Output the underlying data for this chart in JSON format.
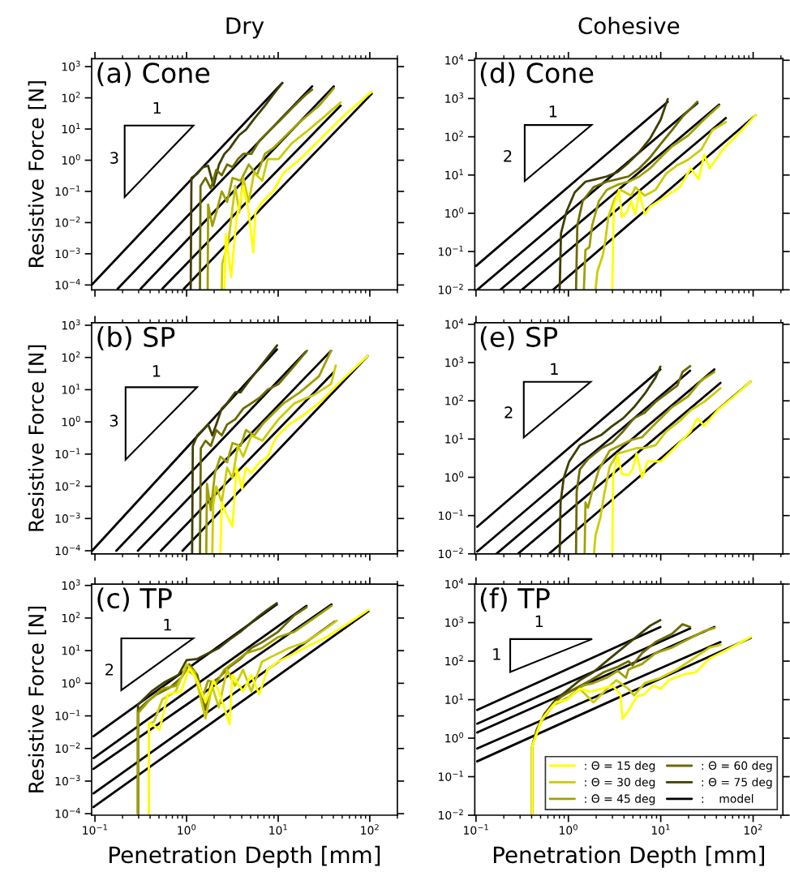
{
  "chart_data": [
    {
      "type": "line",
      "title": "Dry",
      "ylabel": "Resistive Force [N]",
      "annotations": [
        "(a) Cone",
        "1",
        "3"
      ],
      "log": "xy",
      "tick_labels": "y",
      "xlim": [
        0.092,
        200
      ],
      "ylim": [
        7e-05,
        1800
      ],
      "xticks": [
        {
          "value": 0.1,
          "label": null
        },
        {
          "value": 1,
          "label": null
        },
        {
          "value": 10,
          "label": null
        },
        {
          "value": 100,
          "label": null
        }
      ],
      "yticks": [
        {
          "value": 0.0001,
          "label": "10$^{−4}$"
        },
        {
          "value": 0.001,
          "label": "10$^{−3}$"
        },
        {
          "value": 0.01,
          "label": "10$^{−2}$"
        },
        {
          "value": 0.1,
          "label": "10$^{−1}$"
        },
        {
          "value": 1,
          "label": "10$^{0}$"
        },
        {
          "value": 10,
          "label": "10$^{1}$"
        },
        {
          "value": 100,
          "label": "10$^{2}$"
        },
        {
          "value": 1000,
          "label": "10$^{3}$"
        }
      ],
      "series": [
        {
          "color": "#ffff00",
          "x": [
            2.59,
            2.68,
            3.07,
            3.51,
            4.16,
            4.77,
            5.35,
            5.65,
            6.7,
            8.78,
            11.5,
            17.3,
            27.9,
            55,
            105
          ],
          "values": [
            7.6e-05,
            0.0043,
            0.00018,
            0.014,
            0.15,
            0.021,
            0.0011,
            0.021,
            0.046,
            0.1,
            0.4,
            1.08,
            4.3,
            31,
            157
          ]
        },
        {
          "color": "#cccc00",
          "x": [
            2.42,
            2.45,
            2.86,
            3.4,
            3.76,
            4.16,
            4.77,
            5.46,
            6.7,
            7.67,
            10.1,
            14.1,
            19.9,
            29.8,
            48.0
          ],
          "values": [
            7.6e-05,
            0.00049,
            0.0024,
            0.15,
            0.021,
            0.27,
            0.046,
            0.4,
            0.22,
            1.08,
            1.08,
            3.5,
            7.8,
            21,
            71
          ]
        },
        {
          "color": "#a0a000",
          "x": [
            1.7,
            1.72,
            1.91,
            2.11,
            2.42,
            2.77,
            3.17,
            3.89,
            4.77,
            5.85,
            7.16,
            8.78,
            11.5,
            17.3,
            27.9,
            40.5
          ],
          "values": [
            7.6e-05,
            0.038,
            0.0078,
            0.021,
            0.1,
            0.046,
            0.27,
            0.22,
            0.73,
            0.33,
            1.6,
            2.4,
            5.3,
            17,
            56,
            202
          ]
        },
        {
          "color": "#6b6b00",
          "x": [
            1.4,
            1.42,
            1.61,
            1.84,
            2.11,
            2.42,
            2.77,
            3.17,
            3.63,
            4.16,
            5.1,
            6.25,
            7.67,
            10.1,
            14.1,
            19.9,
            23.5
          ],
          "values": [
            7.6e-05,
            0.15,
            0.27,
            0.124,
            0.49,
            0.33,
            0.73,
            0.6,
            1.08,
            1.6,
            1.6,
            4.3,
            7.8,
            17,
            46,
            124,
            183
          ]
        },
        {
          "color": "#3f3f00",
          "x": [
            1.11,
            1.13,
            1.31,
            1.5,
            1.72,
            1.97,
            2.26,
            2.59,
            2.96,
            3.4,
            3.76,
            4.45,
            5.46,
            7.16,
            8.78,
            11.1
          ],
          "values": [
            7.6e-05,
            0.27,
            0.37,
            0.6,
            0.66,
            0.15,
            0.73,
            1.6,
            2.4,
            4.3,
            6.4,
            9.5,
            21,
            56,
            124,
            300
          ]
        },
        {
          "color": "#000000",
          "x": [
            0.935,
            105
          ],
          "values": [
            7.6e-05,
            135
          ]
        },
        {
          "color": "#000000",
          "x": [
            0.543,
            48
          ],
          "values": [
            7.6e-05,
            56
          ]
        },
        {
          "color": "#000000",
          "x": [
            0.315,
            40.5
          ],
          "values": [
            7.6e-05,
            234
          ]
        },
        {
          "color": "#000000",
          "x": [
            0.177,
            23.5
          ],
          "values": [
            7.6e-05,
            234
          ]
        },
        {
          "color": "#000000",
          "x": [
            0.092,
            11.1
          ],
          "values": [
            0.0001,
            300
          ]
        }
      ]
    },
    {
      "type": "line",
      "title": "Cohesive",
      "annotations": [
        "(d) Cone",
        "1",
        "2"
      ],
      "log": "xy",
      "tick_labels": "y",
      "xlim": [
        0.097,
        210
      ],
      "ylim": [
        0.01,
        11000
      ],
      "xticks": [
        {
          "value": 0.1,
          "label": null
        },
        {
          "value": 1,
          "label": null
        },
        {
          "value": 10,
          "label": null
        },
        {
          "value": 100,
          "label": null
        }
      ],
      "yticks": [
        {
          "value": 0.01,
          "label": "10$^{−2}$"
        },
        {
          "value": 0.1,
          "label": "10$^{−1}$"
        },
        {
          "value": 1,
          "label": "10$^{0}$"
        },
        {
          "value": 10,
          "label": "10$^{1}$"
        },
        {
          "value": 100,
          "label": "10$^{2}$"
        },
        {
          "value": 1000,
          "label": "10$^{3}$"
        },
        {
          "value": 10000,
          "label": "10$^{4}$"
        }
      ],
      "series": [
        {
          "color": "#ffff00",
          "x": [
            2.99,
            3.1,
            3.54,
            3.79,
            4.33,
            4.8,
            5.3,
            5.86,
            6.71,
            7.68,
            10.7,
            16.1,
            21.1,
            25.8,
            29.5,
            33.8,
            47.3,
            66.2,
            106
          ],
          "values": [
            0.01,
            1.5,
            4.1,
            0.8,
            1.1,
            2.1,
            0.94,
            3.5,
            0.94,
            1.5,
            2.5,
            4.8,
            15,
            7.8,
            34,
            15,
            47,
            107,
            363
          ]
        },
        {
          "color": "#cccc00",
          "x": [
            1.97,
            2.06,
            2.36,
            2.53,
            2.71,
            3.1,
            3.66,
            4.8,
            5.3,
            6.71,
            8.79,
            11.5,
            15.1,
            19.7,
            27.6,
            36.1,
            50.6
          ],
          "values": [
            0.01,
            0.03,
            0.081,
            0.22,
            0.8,
            2.1,
            4.1,
            2.9,
            4.8,
            2.9,
            4.1,
            11,
            18,
            25,
            47,
            148,
            242
          ]
        },
        {
          "color": "#a0a000",
          "x": [
            1.47,
            1.53,
            1.69,
            1.81,
            2.14,
            2.61,
            3.42,
            4.48,
            5.86,
            7.68,
            10.0,
            13.2,
            19.7,
            29.5,
            42.8
          ],
          "values": [
            0.01,
            0.11,
            0.13,
            0.49,
            2.1,
            4.1,
            5.6,
            6.7,
            9.2,
            15,
            29,
            56,
            107,
            284,
            644
          ]
        },
        {
          "color": "#6b6b00",
          "x": [
            1.21,
            1.25,
            1.43,
            1.87,
            2.61,
            3.42,
            4.48,
            5.86,
            7.68,
            10.0,
            13.2,
            17.2,
            24.9
          ],
          "values": [
            0.01,
            0.49,
            2.1,
            4.8,
            6.7,
            7.8,
            9.2,
            15,
            29,
            65,
            148,
            335,
            822
          ]
        },
        {
          "color": "#3f3f00",
          "x": [
            0.805,
            0.832,
            0.953,
            1.17,
            1.53,
            2.0,
            2.61,
            3.42,
            4.48,
            5.86,
            7.68,
            10.0,
            11.9
          ],
          "values": [
            0.01,
            0.3,
            1.1,
            3.5,
            6.7,
            7.8,
            9.2,
            12,
            21,
            40,
            91,
            284,
            968
          ]
        },
        {
          "color": "#000000",
          "x": [
            0.681,
            106
          ],
          "values": [
            0.01,
            363
          ]
        },
        {
          "color": "#000000",
          "x": [
            0.313,
            50.6
          ],
          "values": [
            0.01,
            309
          ]
        },
        {
          "color": "#000000",
          "x": [
            0.183,
            42.8
          ],
          "values": [
            0.01,
            692
          ]
        },
        {
          "color": "#000000",
          "x": [
            0.103,
            24.9
          ],
          "values": [
            0.01,
            759
          ]
        },
        {
          "color": "#000000",
          "x": [
            0.1,
            11.9
          ],
          "values": [
            0.042,
            822
          ]
        }
      ]
    },
    {
      "type": "line",
      "ylabel": "Resistive Force [N]",
      "annotations": [
        "(b) SP",
        "1",
        "3"
      ],
      "log": "xy",
      "tick_labels": "y",
      "xlim": [
        0.092,
        200
      ],
      "ylim": [
        8e-05,
        1200
      ],
      "xticks": [
        {
          "value": 0.1,
          "label": null
        },
        {
          "value": 1,
          "label": null
        },
        {
          "value": 10,
          "label": null
        },
        {
          "value": 100,
          "label": null
        }
      ],
      "yticks": [
        {
          "value": 0.0001,
          "label": "10$^{−4}$"
        },
        {
          "value": 0.001,
          "label": "10$^{−3}$"
        },
        {
          "value": 0.01,
          "label": "10$^{−2}$"
        },
        {
          "value": 0.1,
          "label": "10$^{−1}$"
        },
        {
          "value": 1,
          "label": "10$^{0}$"
        },
        {
          "value": 10,
          "label": "10$^{1}$"
        },
        {
          "value": 100,
          "label": "10$^{2}$"
        },
        {
          "value": 1000,
          "label": "10$^{3}$"
        }
      ],
      "series": [
        {
          "color": "#ffff00",
          "x": [
            2.34,
            2.42,
            2.68,
            2.96,
            3.17,
            3.51,
            4.03,
            4.45,
            5.1,
            6.25,
            7.67,
            9.4,
            13.2,
            19.9,
            29.8,
            48.0,
            94.6
          ],
          "values": [
            8.3e-05,
            0.0032,
            0.0015,
            0.00083,
            0.00056,
            0.038,
            0.0083,
            0.038,
            0.026,
            0.056,
            0.083,
            0.32,
            0.83,
            1.8,
            4.6,
            18,
            110
          ]
        },
        {
          "color": "#cccc00",
          "x": [
            1.91,
            1.95,
            2.11,
            2.42,
            2.77,
            3.17,
            3.63,
            4.16,
            5.1,
            6.7,
            8.2,
            10.1,
            15.1,
            24.4,
            37.8,
            42.5
          ],
          "values": [
            8.3e-05,
            0.0026,
            0.01,
            0.0032,
            0.038,
            0.018,
            0.18,
            0.083,
            0.38,
            0.26,
            0.56,
            1.21,
            3.8,
            6.8,
            15,
            56
          ]
        },
        {
          "color": "#a0a000",
          "x": [
            1.64,
            1.67,
            1.84,
            2.04,
            2.34,
            2.77,
            3.17,
            3.89,
            4.45,
            5.46,
            6.7,
            8.78,
            11.5,
            17.3,
            27.9,
            37.8
          ],
          "values": [
            8.3e-05,
            0.012,
            0.0018,
            0.026,
            0.083,
            0.056,
            0.22,
            0.18,
            0.56,
            0.38,
            0.83,
            1.8,
            3.8,
            8.3,
            26,
            162
          ]
        },
        {
          "color": "#6b6b00",
          "x": [
            1.4,
            1.43,
            1.61,
            1.84,
            2.11,
            2.42,
            2.77,
            3.4,
            4.16,
            5.1,
            6.25,
            7.67,
            10.1,
            15.1,
            20.6
          ],
          "values": [
            8.3e-05,
            0.15,
            0.26,
            0.18,
            0.56,
            0.38,
            0.83,
            1.21,
            2.6,
            3.8,
            5.6,
            10,
            15,
            56,
            162
          ]
        },
        {
          "color": "#3f3f00",
          "x": [
            1.15,
            1.17,
            1.31,
            1.5,
            1.72,
            1.91,
            2.11,
            2.42,
            2.77,
            3.4,
            3.89,
            4.77,
            5.85,
            7.67,
            9.73
          ],
          "values": [
            8.3e-05,
            0.18,
            0.38,
            0.56,
            0.83,
            0.38,
            0.83,
            2.6,
            3.8,
            8.3,
            8.3,
            18,
            38,
            100,
            237
          ]
        },
        {
          "color": "#000000",
          "x": [
            0.904,
            94.6
          ],
          "values": [
            0.0001,
            110
          ]
        },
        {
          "color": "#000000",
          "x": [
            0.525,
            40.5
          ],
          "values": [
            0.0001,
            35
          ]
        },
        {
          "color": "#000000",
          "x": [
            0.294,
            37.8
          ],
          "values": [
            0.0001,
            162
          ]
        },
        {
          "color": "#000000",
          "x": [
            0.171,
            19.9
          ],
          "values": [
            0.0001,
            148
          ]
        },
        {
          "color": "#000000",
          "x": [
            0.093,
            9.7
          ],
          "values": [
            0.0001,
            178
          ]
        }
      ]
    },
    {
      "type": "line",
      "annotations": [
        "(e) SP",
        "1",
        "2"
      ],
      "log": "xy",
      "tick_labels": "y",
      "xlim": [
        0.097,
        210
      ],
      "ylim": [
        0.01,
        11000
      ],
      "xticks": [
        {
          "value": 0.1,
          "label": null
        },
        {
          "value": 1,
          "label": null
        },
        {
          "value": 10,
          "label": null
        },
        {
          "value": 100,
          "label": null
        }
      ],
      "yticks": [
        {
          "value": 0.01,
          "label": "10$^{−2}$"
        },
        {
          "value": 0.1,
          "label": "10$^{−1}$"
        },
        {
          "value": 1,
          "label": "10$^{0}$"
        },
        {
          "value": 10,
          "label": "10$^{1}$"
        },
        {
          "value": 100,
          "label": "10$^{2}$"
        },
        {
          "value": 1000,
          "label": "10$^{3}$"
        },
        {
          "value": 10000,
          "label": "10$^{4}$"
        }
      ],
      "series": [
        {
          "color": "#ffff00",
          "x": [
            2.99,
            3.05,
            3.42,
            3.79,
            4.48,
            4.95,
            5.48,
            6.28,
            7.18,
            10.0,
            14.1,
            21.1,
            24.9,
            29.5,
            41.3,
            61.9,
            94
          ],
          "values": [
            0.01,
            1.14,
            3.6,
            1.24,
            1.14,
            1.6,
            4.2,
            0.97,
            2.6,
            2.6,
            5.8,
            16,
            35,
            22,
            57,
            130,
            318
          ]
        },
        {
          "color": "#cccc00",
          "x": [
            1.89,
            1.97,
            2.21,
            2.44,
            2.8,
            3.42,
            4.48,
            5.48,
            6.71,
            8.79,
            11.5,
            16.1,
            21.1,
            29.5,
            44.3
          ],
          "values": [
            0.01,
            0.031,
            0.084,
            0.36,
            1.9,
            4.2,
            5.0,
            5.8,
            5.8,
            6.9,
            16,
            30,
            57,
            94,
            212
          ]
        },
        {
          "color": "#a0a000",
          "x": [
            1.5,
            1.53,
            1.63,
            1.81,
            2.14,
            2.8,
            3.66,
            4.8,
            6.28,
            8.22,
            10.0,
            13.2,
            19.7,
            27.6,
            38.1
          ],
          "values": [
            0.01,
            0.22,
            0.16,
            0.43,
            1.6,
            5.0,
            6.9,
            9.5,
            11.2,
            22,
            35,
            68,
            130,
            346,
            565
          ]
        },
        {
          "color": "#6b6b00",
          "x": [
            1.21,
            1.23,
            1.33,
            1.63,
            2.29,
            2.99,
            3.92,
            5.13,
            6.71,
            8.79,
            11.5,
            15.1,
            17.2,
            20.8
          ],
          "values": [
            0.01,
            0.43,
            1.6,
            3.0,
            5.8,
            8.1,
            16,
            35,
            49,
            94,
            153,
            249,
            565,
            809
          ]
        },
        {
          "color": "#3f3f00",
          "x": [
            0.805,
            0.823,
            0.891,
            1.02,
            1.33,
            1.75,
            2.29,
            2.99,
            3.92,
            5.13,
            6.71,
            8.79,
            9.9
          ],
          "values": [
            0.01,
            0.22,
            0.97,
            2.6,
            6.9,
            9.5,
            13,
            22,
            35,
            68,
            153,
            407,
            782
          ]
        },
        {
          "color": "#000000",
          "x": [
            0.615,
            94
          ],
          "values": [
            0.01,
            318
          ]
        },
        {
          "color": "#000000",
          "x": [
            0.284,
            44.3
          ],
          "values": [
            0.01,
            294
          ]
        },
        {
          "color": "#000000",
          "x": [
            0.166,
            38.1
          ],
          "values": [
            0.01,
            664
          ]
        },
        {
          "color": "#000000",
          "x": [
            0.103,
            20.8
          ],
          "values": [
            0.0115,
            612
          ]
        },
        {
          "color": "#000000",
          "x": [
            0.103,
            9.9
          ],
          "values": [
            0.051,
            664
          ]
        }
      ]
    },
    {
      "type": "line",
      "ylabel": "Resistive Force [N]",
      "xlabel": "Penetration Depth [mm]",
      "annotations": [
        "(c) TP",
        "1",
        "2"
      ],
      "log": "xy",
      "xlim": [
        0.092,
        200
      ],
      "ylim": [
        9e-05,
        1100
      ],
      "xticks": [
        {
          "value": 0.1,
          "label": "10$^{−1}$"
        },
        {
          "value": 1,
          "label": "10$^{0}$"
        },
        {
          "value": 10,
          "label": "10$^{1}$"
        },
        {
          "value": 100,
          "label": "10$^{2}$"
        }
      ],
      "yticks": [
        {
          "value": 0.0001,
          "label": "10$^{−4}$"
        },
        {
          "value": 0.001,
          "label": "10$^{−3}$"
        },
        {
          "value": 0.01,
          "label": "10$^{−2}$"
        },
        {
          "value": 0.1,
          "label": "10$^{−1}$"
        },
        {
          "value": 1,
          "label": "10$^{0}$"
        },
        {
          "value": 10,
          "label": "10$^{1}$"
        },
        {
          "value": 100,
          "label": "10$^{2}$"
        },
        {
          "value": 1000,
          "label": "10$^{3}$"
        }
      ],
      "series": [
        {
          "color": "#ffff00",
          "x": [
            0.387,
            0.387,
            0.508,
            0.622,
            0.873,
            1.07,
            1.31,
            1.61,
            1.97,
            2.25,
            2.95,
            3.16,
            4.14,
            5.08,
            6.22,
            7.62,
            10.0,
            15.0,
            22.5,
            33.8,
            58.2,
            96.6
          ],
          "values": [
            0.0001,
            0.062,
            0.038,
            0.46,
            0.56,
            2.9,
            1.21,
            0.26,
            1.21,
            0.56,
            0.056,
            1.8,
            0.56,
            1.8,
            0.46,
            2.6,
            4.6,
            8.3,
            15,
            26,
            68,
            178
          ]
        },
        {
          "color": "#cccc00",
          "x": [
            0.387,
            0.387,
            0.444,
            0.543,
            0.762,
            1.0,
            1.22,
            1.61,
            1.9,
            2.25,
            2.76,
            3.38,
            4.14,
            5.08,
            6.65,
            8.73,
            13.1,
            19.7,
            29.5,
            43.7
          ],
          "values": [
            0.0001,
            0.056,
            0.068,
            0.32,
            0.56,
            3.8,
            2.2,
            0.083,
            0.83,
            0.18,
            2.6,
            0.83,
            2.6,
            0.56,
            4.6,
            6.8,
            12,
            18,
            38,
            83
          ]
        },
        {
          "color": "#a0a000",
          "x": [
            0.295,
            0.295,
            0.387,
            0.543,
            0.762,
            1.0,
            1.22,
            1.5,
            1.72,
            2.11,
            2.58,
            3.38,
            4.43,
            6.65,
            10.0,
            15.0,
            22.5,
            38.2
          ],
          "values": [
            0.0001,
            0.12,
            0.29,
            0.68,
            0.83,
            2.6,
            1.8,
            0.38,
            1.21,
            1.0,
            2.6,
            4.6,
            8.3,
            12,
            26,
            38,
            83,
            237
          ]
        },
        {
          "color": "#6b6b00",
          "x": [
            0.295,
            0.295,
            0.362,
            0.474,
            0.666,
            0.873,
            1.07,
            1.31,
            1.61,
            1.84,
            2.25,
            2.95,
            3.87,
            5.08,
            6.65,
            10.0,
            15.0,
            20.4
          ],
          "values": [
            0.0001,
            0.15,
            0.26,
            0.46,
            0.75,
            1.47,
            3.8,
            1.8,
            0.15,
            1.0,
            1.47,
            3.2,
            5.6,
            12,
            18,
            38,
            121,
            215
          ]
        },
        {
          "color": "#3f3f00",
          "x": [
            0.295,
            0.295,
            0.338,
            0.414,
            0.582,
            0.816,
            1.0,
            1.31,
            1.72,
            2.25,
            2.95,
            3.87,
            5.82,
            7.62,
            9.66
          ],
          "values": [
            0.0001,
            0.22,
            0.32,
            0.56,
            1.1,
            1.8,
            5.1,
            5.6,
            8.3,
            12,
            22,
            38,
            100,
            178,
            287
          ]
        },
        {
          "color": "#000000",
          "x": [
            0.0966,
            96.6
          ],
          "values": [
            0.00016,
            161
          ]
        },
        {
          "color": "#000000",
          "x": [
            0.0966,
            41.5
          ],
          "values": [
            0.00042,
            78
          ]
        },
        {
          "color": "#000000",
          "x": [
            0.0966,
            38.2
          ],
          "values": [
            0.00237,
            261
          ]
        },
        {
          "color": "#000000",
          "x": [
            0.0966,
            20.4
          ],
          "values": [
            0.0051,
            237
          ]
        },
        {
          "color": "#000000",
          "x": [
            0.0966,
            9.66
          ],
          "values": [
            0.0237,
            261
          ]
        }
      ]
    },
    {
      "type": "line",
      "xlabel": "Penetration Depth [mm]",
      "annotations": [
        "(f) TP",
        "1",
        "1"
      ],
      "log": "xy",
      "legend": "bottom right",
      "xlim": [
        0.097,
        210
      ],
      "ylim": [
        0.01,
        10000
      ],
      "xticks": [
        {
          "value": 0.1,
          "label": "10$^{−1}$"
        },
        {
          "value": 1,
          "label": "10$^{0}$"
        },
        {
          "value": 10,
          "label": "10$^{1}$"
        },
        {
          "value": 100,
          "label": "10$^{2}$"
        }
      ],
      "yticks": [
        {
          "value": 0.01,
          "label": "10$^{−2}$"
        },
        {
          "value": 0.1,
          "label": "10$^{−1}$"
        },
        {
          "value": 1,
          "label": "10$^{0}$"
        },
        {
          "value": 10,
          "label": "10$^{1}$"
        },
        {
          "value": 100,
          "label": "10$^{2}$"
        },
        {
          "value": 1000,
          "label": "10$^{3}$"
        },
        {
          "value": 10000,
          "label": "10$^{4}$"
        }
      ],
      "series": [
        {
          "name": ": Θ = 15 deg",
          "color": "#ffff00",
          "x": [
            0.406,
            0.406,
            0.52,
            0.728,
            0.953,
            1.33,
            1.75,
            2.99,
            3.66,
            3.86,
            4.48,
            5.48,
            6.71,
            8.22,
            10.0,
            12.3,
            17.2,
            24.1,
            33.8,
            50.6,
            94
          ],
          "values": [
            0.01,
            0.62,
            3.2,
            8.5,
            10.0,
            19,
            16,
            23,
            14,
            3.2,
            5.2,
            11.8,
            14,
            23,
            19,
            32,
            44,
            52,
            117,
            191,
            419
          ]
        },
        {
          "name": ": Θ = 30 deg",
          "color": "#cccc00",
          "x": [
            0.406,
            0.406,
            0.502,
            0.681,
            0.953,
            1.33,
            1.87,
            2.61,
            3.31,
            4.48,
            5.13,
            6.71,
            10.0,
            15.1,
            22.5,
            33.8,
            44.3
          ],
          "values": [
            0.01,
            0.62,
            2.7,
            7.2,
            10.0,
            19,
            8.5,
            19,
            32,
            19,
            12.8,
            27,
            37,
            61,
            117,
            225,
            265
          ]
        },
        {
          "name": ": Θ = 45 deg",
          "color": "#a0a000",
          "x": [
            0.406,
            0.406,
            0.486,
            0.681,
            1.02,
            1.43,
            1.87,
            2.61,
            3.42,
            4.19,
            4.48,
            6.28,
            8.79,
            13.2,
            19.7,
            29.5,
            38.1
          ],
          "values": [
            0.01,
            0.62,
            2.3,
            7.2,
            11.8,
            23,
            27,
            37,
            56,
            37,
            61,
            84,
            162,
            225,
            367,
            600,
            730
          ]
        },
        {
          "name": ": Θ = 60 deg",
          "color": "#6b6b00",
          "x": [
            0.406,
            0.406,
            0.47,
            0.594,
            0.832,
            1.17,
            1.75,
            2.44,
            3.42,
            4.48,
            4.95,
            6.28,
            8.79,
            13.2,
            17.2,
            20.8
          ],
          "values": [
            0.01,
            0.62,
            1.95,
            5.2,
            11.8,
            19,
            32,
            52,
            71,
            99,
            78,
            162,
            312,
            509,
            904,
            767
          ]
        },
        {
          "name": ": Θ = 75 deg",
          "color": "#3f3f00",
          "x": [
            0.406,
            0.406,
            0.454,
            0.556,
            0.728,
            1.02,
            1.33,
            1.87,
            2.8,
            3.92,
            5.48,
            7.68,
            9.9
          ],
          "values": [
            0.01,
            0.62,
            1.66,
            4.4,
            10.0,
            19,
            32,
            52,
            117,
            225,
            432,
            832,
            1156
          ]
        },
        {
          "name": ":    model",
          "color": "#000000",
          "x": [
            0.103,
            9.9
          ],
          "values": [
            5.4,
            767
          ]
        },
        {
          "color": "#000000",
          "x": [
            0.103,
            20.8
          ],
          "values": [
            2.38,
            706
          ]
        },
        {
          "color": "#000000",
          "x": [
            0.103,
            38.1
          ],
          "values": [
            1.41,
            767
          ]
        },
        {
          "color": "#000000",
          "x": [
            0.103,
            44.3
          ],
          "values": [
            0.54,
            312
          ]
        },
        {
          "color": "#000000",
          "x": [
            0.103,
            94
          ],
          "values": [
            0.25,
            399
          ]
        }
      ]
    }
  ]
}
